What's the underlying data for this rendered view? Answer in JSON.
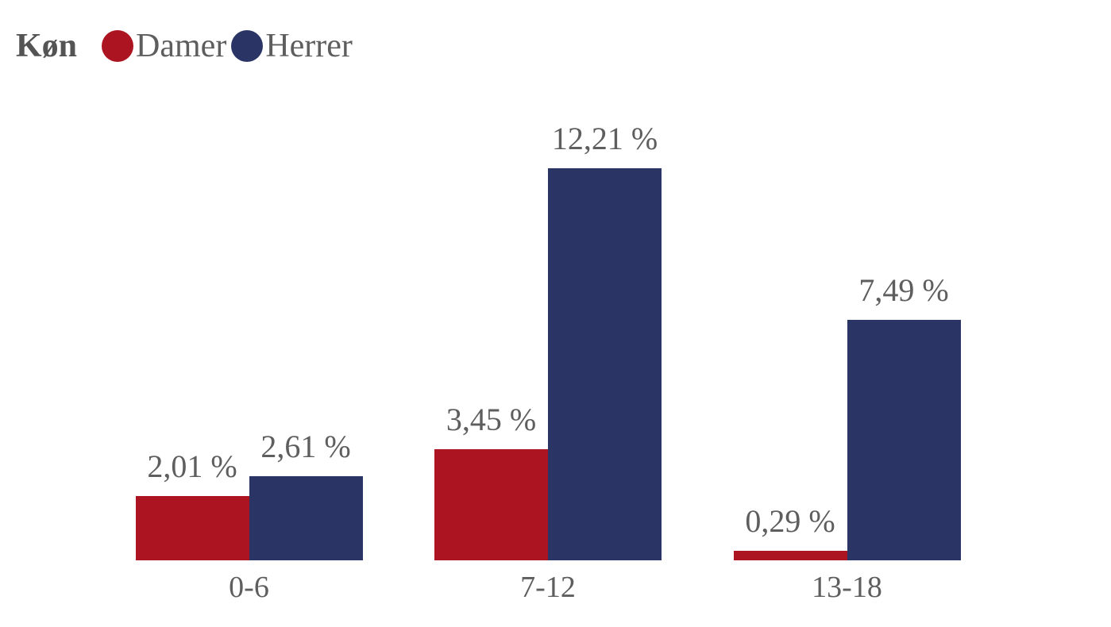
{
  "legend": {
    "title": "Køn",
    "items": [
      {
        "label": "Damer",
        "color": "#AD1422"
      },
      {
        "label": "Herrer",
        "color": "#2B3565"
      }
    ]
  },
  "chart_data": {
    "type": "bar",
    "title": "",
    "xlabel": "",
    "ylabel": "",
    "categories": [
      "0-6",
      "7-12",
      "13-18"
    ],
    "series": [
      {
        "name": "Damer",
        "color": "#AD1422",
        "values": [
          2.01,
          3.45,
          0.29
        ],
        "labels": [
          "2,01 %",
          "3,45 %",
          "0,29 %"
        ]
      },
      {
        "name": "Herrer",
        "color": "#2B3565",
        "values": [
          2.61,
          12.21,
          7.49
        ],
        "labels": [
          "2,61 %",
          "12,21 %",
          "7,49 %"
        ]
      }
    ],
    "ylim": [
      0,
      13.5
    ],
    "grid": false,
    "axis_lines": false,
    "value_labels_shown": true,
    "decimal_separator": ",",
    "legend_position": "top-left"
  },
  "colors": {
    "background": "#ffffff",
    "label_text": "#5E5E5E",
    "legend_title_text": "#545454"
  }
}
